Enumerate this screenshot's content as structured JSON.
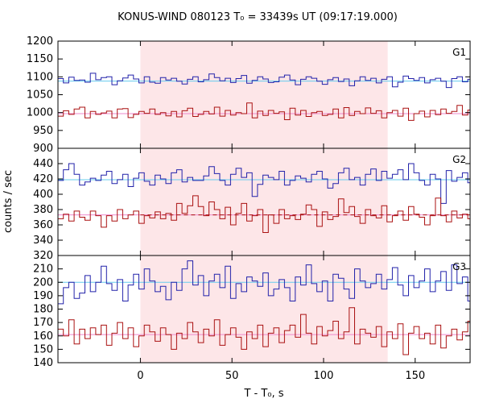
{
  "title": "KONUS-WIND 080123 T₀ = 33439s UT (09:17:19.000)",
  "xlabel": "T - T₀, s",
  "ylabel": "counts / sec",
  "colors": {
    "upper": "#2222aa",
    "lower": "#aa1111",
    "fitUpper": "#66ccee",
    "fitLower": "#ee88cc",
    "shade": "#fde6e8"
  },
  "chart_data": {
    "type": "line",
    "x_range": [
      -45,
      180
    ],
    "x_ticks": [
      0,
      50,
      100,
      150
    ],
    "interval_shaded": [
      0,
      135
    ],
    "bin_width": 2.944,
    "panels": [
      {
        "label": "G1",
        "y_range": [
          900,
          1200
        ],
        "y_ticks": [
          950,
          1000,
          1050,
          1100,
          1150,
          1200
        ],
        "y_tick_labels": [
          "900",
          "950",
          "1000",
          "1050",
          "1100",
          "1150",
          "1200"
        ],
        "series": [
          {
            "name": "upper",
            "level": 1088,
            "amplitude": 14,
            "values": [
              1095,
              1083,
              1099,
              1090,
              1091,
              1085,
              1110,
              1092,
              1098,
              1100,
              1078,
              1089,
              1097,
              1105,
              1094,
              1083,
              1100,
              1085,
              1082,
              1098,
              1091,
              1096,
              1088,
              1080,
              1093,
              1100,
              1086,
              1092,
              1108,
              1098,
              1089,
              1096,
              1084,
              1095,
              1104,
              1082,
              1090,
              1100,
              1094,
              1084,
              1086,
              1099,
              1105,
              1091,
              1078,
              1093,
              1100,
              1096,
              1088,
              1079,
              1092,
              1098,
              1087,
              1094,
              1075,
              1089,
              1100,
              1090,
              1096,
              1083,
              1093,
              1100,
              1072,
              1085,
              1102,
              1095,
              1090,
              1098,
              1083,
              1092,
              1096,
              1088,
              1070,
              1095,
              1100,
              1086,
              1093,
              1099
            ]
          },
          {
            "name": "lower",
            "level": 997,
            "amplitude": 14,
            "values": [
              990,
              1005,
              995,
              1010,
              1015,
              985,
              1003,
              995,
              999,
              1004,
              985,
              1010,
              1011,
              986,
              995,
              1003,
              998,
              1010,
              995,
              1000,
              991,
              1003,
              988,
              1005,
              1012,
              989,
              995,
              1003,
              996,
              1015,
              990,
              1006,
              993,
              1000,
              997,
              1027,
              985,
              1004,
              992,
              1006,
              998,
              1002,
              980,
              1012,
              993,
              1006,
              989,
              1000,
              1003,
              992,
              995,
              1010,
              985,
              1014,
              992,
              1003,
              997,
              1013,
              998,
              1005,
              985,
              1000,
              1006,
              990,
              1012,
              978,
              997,
              1004,
              988,
              1006,
              994,
              1010,
              998,
              1003,
              1020,
              993,
              1007,
              1026
            ]
          }
        ]
      },
      {
        "label": "G2",
        "y_range": [
          320,
          460
        ],
        "y_ticks": [
          340,
          360,
          380,
          400,
          420,
          440
        ],
        "y_tick_labels": [
          "320",
          "340",
          "360",
          "380",
          "400",
          "420",
          "440"
        ],
        "series": [
          {
            "name": "upper",
            "level": 419,
            "amplitude": 10,
            "values": [
              418,
              432,
              440,
              426,
              412,
              416,
              421,
              418,
              425,
              430,
              414,
              419,
              426,
              410,
              421,
              428,
              417,
              412,
              425,
              420,
              414,
              428,
              432,
              416,
              422,
              418,
              418,
              424,
              436,
              427,
              418,
              412,
              426,
              434,
              422,
              428,
              397,
              413,
              425,
              422,
              419,
              430,
              412,
              418,
              424,
              421,
              416,
              426,
              430,
              420,
              408,
              414,
              428,
              434,
              419,
              422,
              412,
              426,
              433,
              418,
              430,
              421,
              426,
              432,
              419,
              440,
              428,
              418,
              412,
              426,
              420,
              388,
              431,
              417,
              422,
              428,
              415,
              423
            ]
          },
          {
            "name": "lower",
            "level": 373,
            "amplitude": 10,
            "values": [
              368,
              374,
              365,
              378,
              370,
              366,
              378,
              372,
              357,
              372,
              365,
              380,
              368,
              373,
              378,
              362,
              372,
              369,
              377,
              368,
              375,
              366,
              388,
              375,
              385,
              398,
              384,
              372,
              390,
              380,
              368,
              383,
              360,
              375,
              388,
              365,
              372,
              380,
              350,
              373,
              362,
              380,
              368,
              372,
              367,
              374,
              386,
              380,
              358,
              377,
              367,
              371,
              394,
              376,
              384,
              371,
              362,
              380,
              372,
              369,
              385,
              364,
              372,
              378,
              366,
              384,
              374,
              370,
              360,
              372,
              395,
              372,
              364,
              378,
              369,
              374,
              368,
              360
            ]
          }
        ]
      },
      {
        "label": "G3",
        "y_range": [
          140,
          220
        ],
        "y_ticks": [
          150,
          160,
          170,
          180,
          190,
          200,
          210
        ],
        "y_tick_labels": [
          "140",
          "150",
          "160",
          "170",
          "180",
          "190",
          "200",
          "210"
        ],
        "series": [
          {
            "name": "upper",
            "level": 200,
            "amplitude": 8,
            "values": [
              184,
              196,
              200,
              188,
              192,
              205,
              193,
              200,
              212,
              199,
              194,
              202,
              186,
              198,
              206,
              195,
              210,
              201,
              193,
              197,
              187,
              200,
              194,
              210,
              216,
              198,
              205,
              190,
              201,
              206,
              196,
              212,
              188,
              199,
              193,
              204,
              201,
              197,
              207,
              190,
              195,
              202,
              196,
              186,
              204,
              198,
              213,
              199,
              193,
              201,
              186,
              206,
              203,
              195,
              188,
              210,
              201,
              196,
              199,
              206,
              195,
              202,
              211,
              198,
              190,
              205,
              196,
              201,
              210,
              193,
              201,
              208,
              194,
              213,
              199,
              204,
              186,
              201
            ]
          },
          {
            "name": "lower",
            "level": 161,
            "amplitude": 8,
            "values": [
              165,
              160,
              172,
              154,
              165,
              158,
              166,
              161,
              168,
              153,
              162,
              170,
              158,
              166,
              152,
              160,
              168,
              163,
              156,
              166,
              161,
              150,
              162,
              158,
              170,
              163,
              155,
              165,
              160,
              172,
              153,
              161,
              166,
              159,
              150,
              163,
              158,
              168,
              152,
              162,
              166,
              155,
              164,
              168,
              159,
              176,
              162,
              154,
              167,
              160,
              164,
              171,
              158,
              163,
              181,
              154,
              165,
              162,
              159,
              167,
              152,
              163,
              158,
              169,
              146,
              162,
              167,
              158,
              162,
              154,
              168,
              151,
              160,
              165,
              157,
              163,
              171,
              155
            ]
          }
        ]
      }
    ]
  }
}
